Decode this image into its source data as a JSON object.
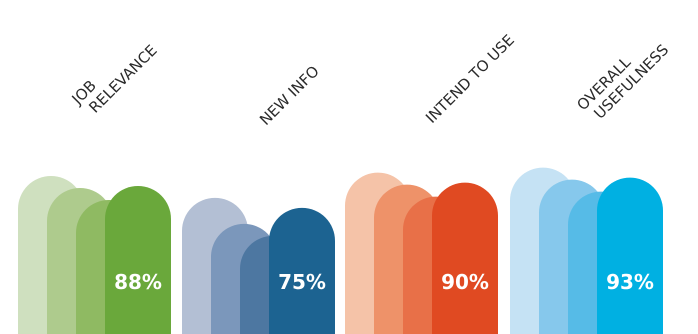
{
  "chart_data": {
    "type": "bar",
    "categories": [
      [
        "JOB",
        "RELEVANCE"
      ],
      [
        "NEW INFO"
      ],
      [
        "INTEND TO USE"
      ],
      [
        "OVERALL",
        "USEFULNESS"
      ]
    ],
    "values": [
      88,
      75,
      90,
      93
    ],
    "value_labels": [
      "88%",
      "75%",
      "90%",
      "93%"
    ],
    "palettes": [
      [
        "#cfe0bf",
        "#aecb8d",
        "#8fba62",
        "#6aa83b"
      ],
      [
        "#b3bfd4",
        "#7b97bb",
        "#4d77a1",
        "#1c6391"
      ],
      [
        "#f5c3a8",
        "#ee9269",
        "#e87048",
        "#e04a22"
      ],
      [
        "#c5e2f4",
        "#86c8ec",
        "#56bbe7",
        "#00b0e2"
      ]
    ],
    "title": "",
    "xlabel": "",
    "ylabel": "",
    "grid": false,
    "legend": "none"
  }
}
